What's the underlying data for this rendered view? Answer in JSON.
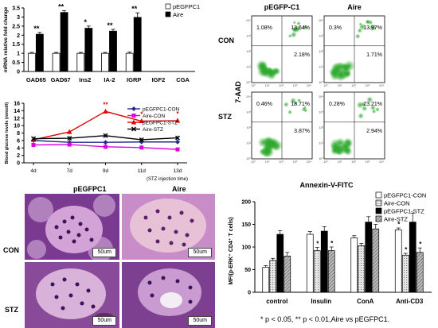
{
  "chart_data": [
    {
      "type": "bar",
      "ylabel": "mRNA relative fold change",
      "ylim": [
        0,
        3.5
      ],
      "yticks": [
        0,
        0.5,
        1,
        1.5,
        2,
        2.5,
        3,
        3.5
      ],
      "categories": [
        "GAD65",
        "GAD67",
        "Ins2",
        "IA-2",
        "IGRP",
        "IGF2",
        "CGA"
      ],
      "series": [
        {
          "name": "pEGFPC1",
          "values": [
            1,
            1,
            1,
            1,
            1,
            0,
            0
          ],
          "errors": [
            0.05,
            0.05,
            0.05,
            0.05,
            0.07,
            0,
            0
          ],
          "fill": "#ffffff"
        },
        {
          "name": "Aire",
          "values": [
            2.05,
            3.25,
            2.38,
            2.22,
            2.98,
            0,
            0
          ],
          "errors": [
            0.1,
            0.1,
            0.12,
            0.1,
            0.25,
            0,
            0
          ],
          "fill": "#000000"
        }
      ],
      "significance": [
        "**",
        "**",
        "*",
        "**",
        "**",
        "",
        ""
      ],
      "legend_position": "top-right"
    },
    {
      "type": "line",
      "ylabel": "Blood glucose levels (mmol/l)",
      "ylim": [
        0,
        16
      ],
      "yticks": [
        0,
        2,
        4,
        6,
        8,
        10,
        12,
        14,
        16
      ],
      "categories": [
        "4d",
        "7d",
        "9d",
        "11d",
        "13d"
      ],
      "x_note": "(STZ injection time)",
      "series": [
        {
          "name": "pEGFPC1-CON",
          "values": [
            6.0,
            5.5,
            5.5,
            5.6,
            5.6
          ],
          "color": "#1f2a88",
          "marker": "diamond"
        },
        {
          "name": "Aire-CON",
          "values": [
            4.8,
            4.9,
            4.3,
            4.1,
            3.6
          ],
          "color": "#e000e0",
          "marker": "square"
        },
        {
          "name": "pEGFPC1-STZ",
          "values": [
            6.2,
            8.3,
            13.8,
            11.2,
            11.3
          ],
          "color": "#e00000",
          "marker": "triangle"
        },
        {
          "name": "Aire-STZ",
          "values": [
            6.5,
            6.6,
            7.3,
            6.2,
            6.7
          ],
          "color": "#000000",
          "marker": "x"
        }
      ],
      "significance": [
        "",
        "",
        "**",
        "*",
        "*"
      ],
      "legend_position": "top-right"
    },
    {
      "type": "bar",
      "ylabel": "MFI(p-ERK⁺ CD4⁺ T cells)",
      "ylim": [
        0,
        200
      ],
      "yticks": [
        0,
        50,
        100,
        150,
        200
      ],
      "categories": [
        "control",
        "Insulin",
        "ConA",
        "Anti-CD3"
      ],
      "series": [
        {
          "name": "pEGFPC1-CON",
          "values": [
            55,
            128,
            120,
            138
          ],
          "errors": [
            4,
            6,
            5,
            4
          ],
          "pattern": "white"
        },
        {
          "name": "Aire-CON",
          "values": [
            70,
            92,
            103,
            82
          ],
          "errors": [
            5,
            7,
            5,
            4
          ],
          "pattern": "dots"
        },
        {
          "name": "pEGFPC1-STZ",
          "values": [
            128,
            135,
            155,
            155
          ],
          "errors": [
            8,
            10,
            12,
            20
          ],
          "pattern": "black"
        },
        {
          "name": "Aire-STZ",
          "values": [
            80,
            92,
            140,
            88
          ],
          "errors": [
            8,
            8,
            10,
            10
          ],
          "pattern": "hatch"
        }
      ],
      "significance": [
        [
          "",
          "",
          "",
          "*"
        ],
        [
          "",
          "*",
          "",
          "*"
        ],
        [
          "",
          "",
          "",
          ""
        ],
        [
          "",
          "*",
          "",
          "*"
        ]
      ],
      "legend_position": "top-right"
    }
  ],
  "flow": {
    "col_labels": [
      "pEGFP-C1",
      "Aire"
    ],
    "row_labels": [
      "CON",
      "STZ"
    ],
    "xlabel": "Annexin-V-FITC",
    "ylabel": "7-AAD",
    "tick_labels": [
      "10⁰",
      "10¹",
      "10²",
      "10³",
      "10⁴"
    ],
    "quadrants": [
      {
        "ul": "1.08%",
        "ur": "13.64%",
        "lr": "2.18%"
      },
      {
        "ul": "0.3%",
        "ur": "13.97%",
        "lr": "1.71%"
      },
      {
        "ul": "0.46%",
        "ur": "18.71%",
        "lr": "3.87%"
      },
      {
        "ul": "0.28%",
        "ur": "23.21%",
        "lr": "2.94%"
      }
    ]
  },
  "histology": {
    "col_labels": [
      "pEGFPC1",
      "Aire"
    ],
    "row_labels": [
      "CON",
      "STZ"
    ],
    "scale": "50um"
  },
  "footnote": "* p < 0.05,  ** p < 0.01,Aire vs pEGFPC1."
}
